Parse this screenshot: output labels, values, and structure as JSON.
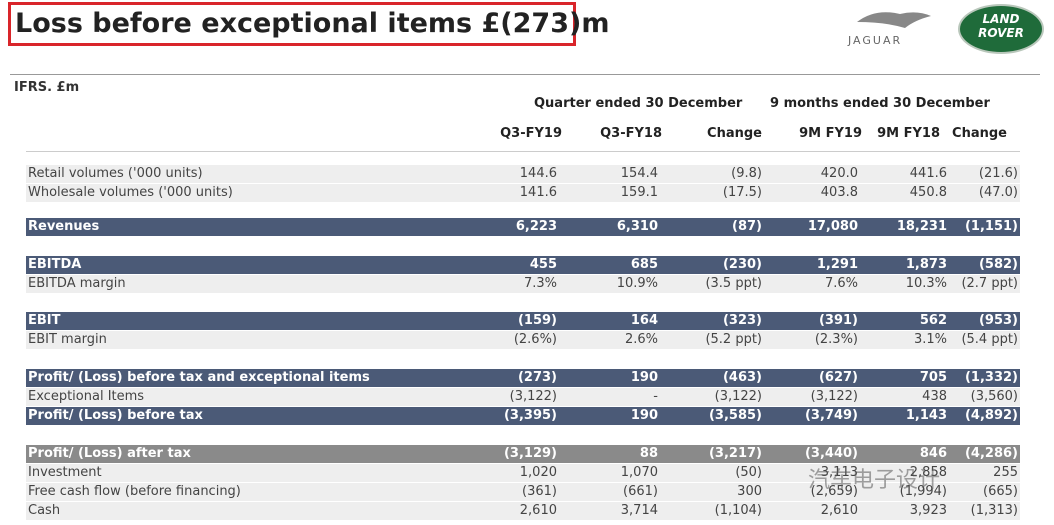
{
  "header": {
    "title": "Loss before exceptional items £(273)m",
    "logos": [
      "JAGUAR",
      "LAND ROVER"
    ]
  },
  "table": {
    "unit_note": "IFRS, £m",
    "groups": [
      "Quarter ended 30 December",
      "9 months ended 30 December"
    ],
    "columns": [
      "Q3-FY19",
      "Q3-FY18",
      "Change",
      "9M FY19",
      "9M FY18",
      "Change"
    ],
    "rows": [
      {
        "label": "Retail volumes ('000 units)",
        "values": [
          "144.6",
          "154.4",
          "(9.8)",
          "420.0",
          "441.6",
          "(21.6)"
        ]
      },
      {
        "label": "Wholesale volumes ('000 units)",
        "values": [
          "141.6",
          "159.1",
          "(17.5)",
          "403.8",
          "450.8",
          "(47.0)"
        ]
      },
      {
        "label": "Revenues",
        "values": [
          "6,223",
          "6,310",
          "(87)",
          "17,080",
          "18,231",
          "(1,151)"
        ]
      },
      {
        "label": "EBITDA",
        "values": [
          "455",
          "685",
          "(230)",
          "1,291",
          "1,873",
          "(582)"
        ]
      },
      {
        "label": "EBITDA margin",
        "values": [
          "7.3%",
          "10.9%",
          "(3.5 ppt)",
          "7.6%",
          "10.3%",
          "(2.7 ppt)"
        ]
      },
      {
        "label": "EBIT",
        "values": [
          "(159)",
          "164",
          "(323)",
          "(391)",
          "562",
          "(953)"
        ]
      },
      {
        "label": "EBIT margin",
        "values": [
          "(2.6%)",
          "2.6%",
          "(5.2 ppt)",
          "(2.3%)",
          "3.1%",
          "(5.4 ppt)"
        ]
      },
      {
        "label": "Profit/ (Loss) before tax and exceptional items",
        "values": [
          "(273)",
          "190",
          "(463)",
          "(627)",
          "705",
          "(1,332)"
        ]
      },
      {
        "label": "Exceptional Items",
        "values": [
          "(3,122)",
          "-",
          "(3,122)",
          "(3,122)",
          "438",
          "(3,560)"
        ]
      },
      {
        "label": "Profit/ (Loss) before tax",
        "values": [
          "(3,395)",
          "190",
          "(3,585)",
          "(3,749)",
          "1,143",
          "(4,892)"
        ]
      },
      {
        "label": "Profit/ (Loss) after tax",
        "values": [
          "(3,129)",
          "88",
          "(3,217)",
          "(3,440)",
          "846",
          "(4,286)"
        ]
      },
      {
        "label": "Investment",
        "values": [
          "1,020",
          "1,070",
          "(50)",
          "3,113",
          "2,858",
          "255"
        ]
      },
      {
        "label": "Free cash flow (before financing)",
        "values": [
          "(361)",
          "(661)",
          "300",
          "(2,659)",
          "(1,994)",
          "(665)"
        ]
      },
      {
        "label": "Cash",
        "values": [
          "2,610",
          "3,714",
          "(1,104)",
          "2,610",
          "3,923",
          "(1,313)"
        ]
      }
    ]
  },
  "watermark": "汽车电子设计"
}
